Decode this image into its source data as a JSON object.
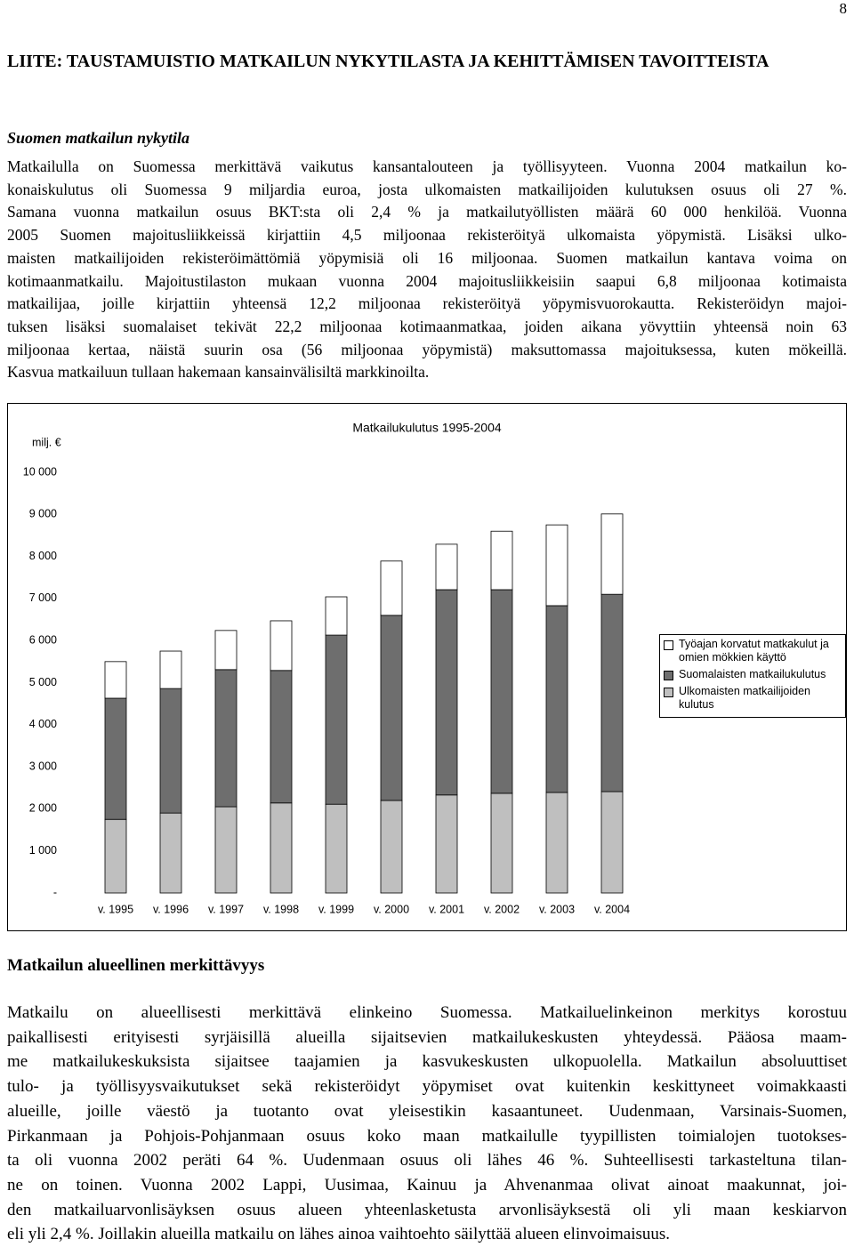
{
  "page_number": "8",
  "header": {
    "title": "LIITE: TAUSTAMUISTIO MATKAILUN NYKYTILASTA JA KEHITTÄMISEN TAVOITTEISTA"
  },
  "section1": {
    "heading": "Suomen matkailun nykytila",
    "lines": [
      "Matkailulla on Suomessa merkittävä vaikutus kansantalouteen ja työllisyyteen. Vuonna 2004 matkailun ko-",
      "konaiskulutus oli Suomessa 9 miljardia euroa, josta ulkomaisten matkailijoiden kulutuksen osuus oli 27 %.",
      "Samana vuonna matkailun osuus BKT:sta oli 2,4 % ja matkailutyöllisten määrä 60 000 henkilöä. Vuonna",
      "2005 Suomen majoitusliikkeissä kirjattiin 4,5 miljoonaa rekisteröityä ulkomaista yöpymistä. Lisäksi ulko-",
      "maisten matkailijoiden rekisteröimättömiä yöpymisiä oli 16 miljoonaa. Suomen matkailun kantava voima on",
      "kotimaanmatkailu. Majoitustilaston mukaan vuonna 2004 majoitusliikkeisiin saapui 6,8 miljoonaa kotimaista",
      "matkailijaa, joille kirjattiin yhteensä 12,2 miljoonaa rekisteröityä yöpymisvuorokautta. Rekisteröidyn majoi-",
      "tuksen lisäksi suomalaiset tekivät 22,2 miljoonaa kotimaanmatkaa, joiden aikana yövyttiin yhteensä noin 63",
      "miljoonaa kertaa, näistä suurin osa (56 miljoonaa yöpymistä) maksuttomassa majoituksessa, kuten mökeillä.",
      "Kasvua matkailuun tullaan hakemaan kansainvälisiltä markkinoilta."
    ]
  },
  "chart_data": {
    "type": "stacked-bar",
    "title": "Matkailukulutus 1995-2004",
    "y_label": "milj. €",
    "categories": [
      "v. 1995",
      "v. 1996",
      "v. 1997",
      "v. 1998",
      "v. 1999",
      "v. 2000",
      "v. 2001",
      "v. 2002",
      "v. 2003",
      "v. 2004"
    ],
    "series": [
      {
        "name": "Ulkomaisten matkailijoiden kulutus",
        "color": "#bfbfbf",
        "values": [
          1750,
          1900,
          2050,
          2140,
          2110,
          2200,
          2330,
          2370,
          2390,
          2410
        ]
      },
      {
        "name": "Suomalaisten matkailukulutus",
        "color": "#6e6e6e",
        "values": [
          2880,
          2960,
          3260,
          3150,
          4020,
          4400,
          4880,
          4840,
          4440,
          4690
        ]
      },
      {
        "name": "Työajan korvatut matkakulut ja omien mökkien käyttö",
        "color": "#ffffff",
        "values": [
          870,
          890,
          930,
          1180,
          910,
          1290,
          1080,
          1390,
          1920,
          1910
        ]
      }
    ],
    "ylim": [
      0,
      10000
    ],
    "yticks": [
      {
        "value": 0,
        "label": "-"
      },
      {
        "value": 1000,
        "label": "1 000"
      },
      {
        "value": 2000,
        "label": "2 000"
      },
      {
        "value": 3000,
        "label": "3 000"
      },
      {
        "value": 4000,
        "label": "4 000"
      },
      {
        "value": 5000,
        "label": "5 000"
      },
      {
        "value": 6000,
        "label": "6 000"
      },
      {
        "value": 7000,
        "label": "7 000"
      },
      {
        "value": 8000,
        "label": "8 000"
      },
      {
        "value": 9000,
        "label": "9 000"
      },
      {
        "value": 10000,
        "label": "10 000"
      }
    ],
    "legend": "right"
  },
  "section2": {
    "heading": "Matkailun alueellinen merkittävyys",
    "lines": [
      "Matkailu on alueellisesti merkittävä elinkeino Suomessa. Matkailuelinkeinon merkitys korostuu",
      "paikallisesti erityisesti syrjäisillä alueilla sijaitsevien matkailukeskusten yhteydessä. Pääosa maam-",
      "me matkailukeskuksista sijaitsee taajamien ja kasvukeskusten ulkopuolella. Matkailun absoluuttiset",
      "tulo- ja työllisyysvaikutukset sekä rekisteröidyt yöpymiset ovat kuitenkin keskittyneet voimakkaasti",
      "alueille, joille väestö ja tuotanto ovat yleisestikin kasaantuneet. Uudenmaan, Varsinais-Suomen,",
      "Pirkanmaan ja Pohjois-Pohjanmaan osuus koko maan matkailulle tyypillisten toimialojen tuotokses-",
      "ta oli vuonna 2002 peräti 64 %. Uudenmaan osuus oli lähes 46 %. Suhteellisesti tarkasteltuna tilan-",
      "ne on toinen.  Vuonna 2002 Lappi, Uusimaa, Kainuu ja Ahvenanmaa olivat ainoat maakunnat, joi-",
      "den matkailuarvonlisäyksen osuus alueen yhteenlasketusta arvonlisäyksestä oli yli maan keskiarvon",
      "eli yli 2,4 %. Joillakin alueilla matkailu on lähes ainoa vaihtoehto säilyttää alueen elinvoimaisuus."
    ]
  }
}
